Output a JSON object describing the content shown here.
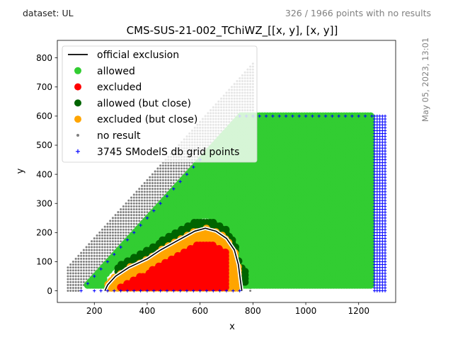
{
  "header": {
    "dataset_label": "dataset: UL",
    "no_results_note": "326 / 1966 points with no results",
    "timestamp": "May 05, 2023, 13:01"
  },
  "chart_data": {
    "type": "scatter",
    "title": "CMS-SUS-21-002_TChiWZ_[[x, y], [x, y]]",
    "xlabel": "x",
    "ylabel": "y",
    "xlim": [
      60,
      1340
    ],
    "ylim": [
      -40,
      860
    ],
    "xticks": [
      200,
      400,
      600,
      800,
      1000,
      1200
    ],
    "yticks": [
      0,
      100,
      200,
      300,
      400,
      500,
      600,
      700,
      800
    ],
    "grid": false,
    "legend_position": "top-left",
    "legend": [
      {
        "label": "official exclusion",
        "kind": "line",
        "color": "#000000"
      },
      {
        "label": "allowed",
        "kind": "dot",
        "color": "#32cd32"
      },
      {
        "label": "excluded",
        "kind": "dot",
        "color": "#ff0000"
      },
      {
        "label": "allowed (but close)",
        "kind": "dot",
        "color": "#006400"
      },
      {
        "label": "excluded (but close)",
        "kind": "dot",
        "color": "#ffa500"
      },
      {
        "label": "no result",
        "kind": "small-dot",
        "color": "#808080"
      },
      {
        "label": "3745 SModelS db grid points",
        "kind": "plus",
        "color": "#0000ff"
      }
    ],
    "colors": {
      "allowed": "#32cd32",
      "excluded": "#ff0000",
      "allowed_close": "#006400",
      "excluded_close": "#ffa500",
      "no_result": "#808080",
      "grid_points": "#0000ff",
      "exclusion_line": "#000000"
    },
    "official_exclusion": [
      [
        240,
        0
      ],
      [
        250,
        20
      ],
      [
        280,
        50
      ],
      [
        330,
        80
      ],
      [
        400,
        110
      ],
      [
        450,
        140
      ],
      [
        520,
        175
      ],
      [
        580,
        205
      ],
      [
        620,
        215
      ],
      [
        660,
        205
      ],
      [
        700,
        180
      ],
      [
        730,
        140
      ],
      [
        745,
        90
      ],
      [
        752,
        40
      ],
      [
        758,
        0
      ]
    ],
    "regions": {
      "allowed_band": {
        "upper_edge": [
          [
            150,
            0
          ],
          [
            600,
            450
          ],
          [
            750,
            600
          ],
          [
            1250,
            600
          ]
        ],
        "x_max": 1250
      },
      "excluded": {
        "x_range": [
          290,
          710
        ],
        "y_range": [
          0,
          160
        ]
      },
      "excluded_close": {
        "x_range": [
          230,
          760
        ],
        "y_range": [
          0,
          225
        ]
      },
      "allowed_close": {
        "x_range": [
          290,
          780
        ],
        "y_range": [
          0,
          245
        ]
      },
      "no_result": {
        "x_range": [
          100,
          800
        ],
        "y_range": [
          0,
          820
        ]
      },
      "grid_points": {
        "x_range": [
          150,
          1300
        ],
        "y_range": [
          0,
          600
        ]
      }
    }
  }
}
